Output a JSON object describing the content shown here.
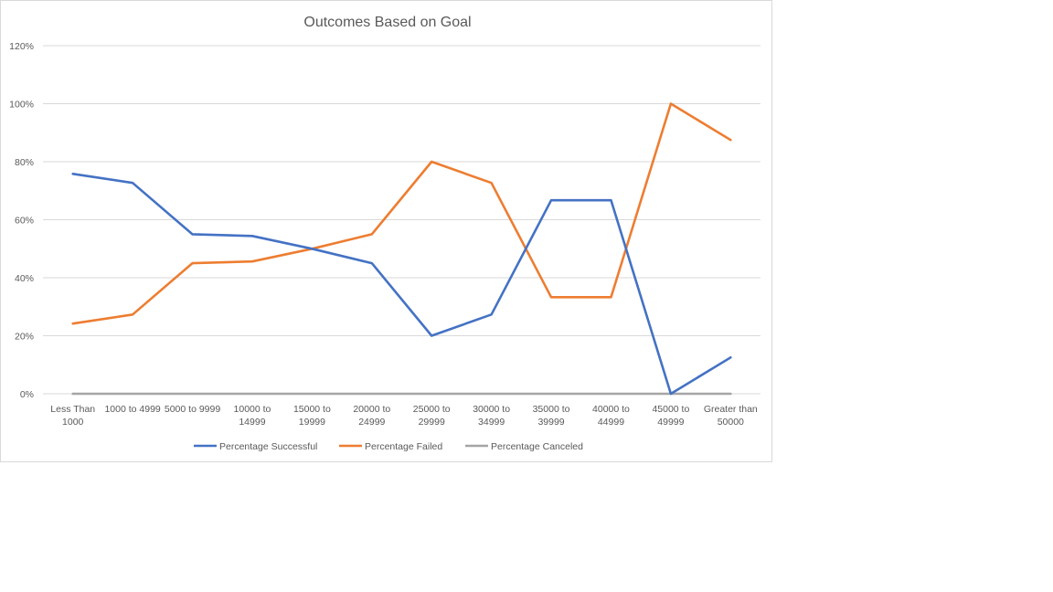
{
  "chart_data": {
    "type": "line",
    "title": "Outcomes Based on Goal",
    "xlabel": "",
    "ylabel": "",
    "ylim": [
      0,
      1.2
    ],
    "y_ticks": [
      0,
      0.2,
      0.4,
      0.6,
      0.8,
      1.0,
      1.2
    ],
    "y_tick_labels": [
      "0%",
      "20%",
      "40%",
      "60%",
      "80%",
      "100%",
      "120%"
    ],
    "grid": true,
    "legend_position": "bottom",
    "categories": [
      [
        "Less Than",
        "1000"
      ],
      [
        "1000 to 4999"
      ],
      [
        "5000 to 9999"
      ],
      [
        "10000 to",
        "14999"
      ],
      [
        "15000 to",
        "19999"
      ],
      [
        "20000 to",
        "24999"
      ],
      [
        "25000 to",
        "29999"
      ],
      [
        "30000 to",
        "34999"
      ],
      [
        "35000 to",
        "39999"
      ],
      [
        "40000 to",
        "44999"
      ],
      [
        "45000 to",
        "49999"
      ],
      [
        "Greater than",
        "50000"
      ]
    ],
    "series": [
      {
        "name": "Percentage Successful",
        "color": "#4472c4",
        "values": [
          0.758,
          0.727,
          0.55,
          0.544,
          0.5,
          0.45,
          0.2,
          0.273,
          0.667,
          0.667,
          0.0,
          0.125
        ]
      },
      {
        "name": "Percentage Failed",
        "color": "#ed7d31",
        "values": [
          0.242,
          0.273,
          0.45,
          0.456,
          0.5,
          0.55,
          0.8,
          0.727,
          0.333,
          0.333,
          1.0,
          0.875
        ]
      },
      {
        "name": "Percentage Canceled",
        "color": "#a5a5a5",
        "values": [
          0,
          0,
          0,
          0,
          0,
          0,
          0,
          0,
          0,
          0,
          0,
          0
        ]
      }
    ]
  }
}
